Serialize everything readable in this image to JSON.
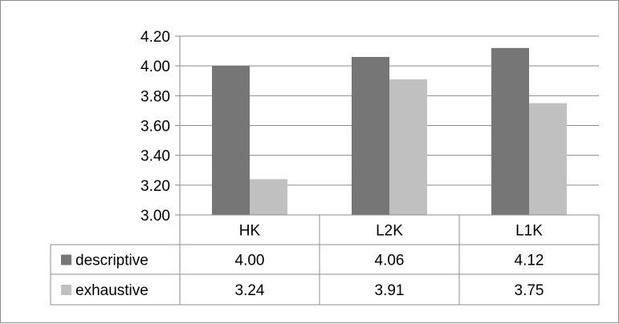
{
  "chart_data": {
    "type": "bar",
    "categories": [
      "HK",
      "L2K",
      "L1K"
    ],
    "series": [
      {
        "name": "descriptive",
        "values": [
          4.0,
          4.06,
          4.12
        ],
        "labels": [
          "4.00",
          "4.06",
          "4.12"
        ],
        "color": "#767676"
      },
      {
        "name": "exhaustive",
        "values": [
          3.24,
          3.91,
          3.75
        ],
        "labels": [
          "3.24",
          "3.91",
          "3.75"
        ],
        "color": "#c0c0c0"
      }
    ],
    "ylim": [
      3.0,
      4.2
    ],
    "yticks": [
      "3.00",
      "3.20",
      "3.40",
      "3.60",
      "3.80",
      "4.00",
      "4.20"
    ],
    "grid": true,
    "legend": "data-table",
    "title": "",
    "xlabel": "",
    "ylabel": ""
  }
}
